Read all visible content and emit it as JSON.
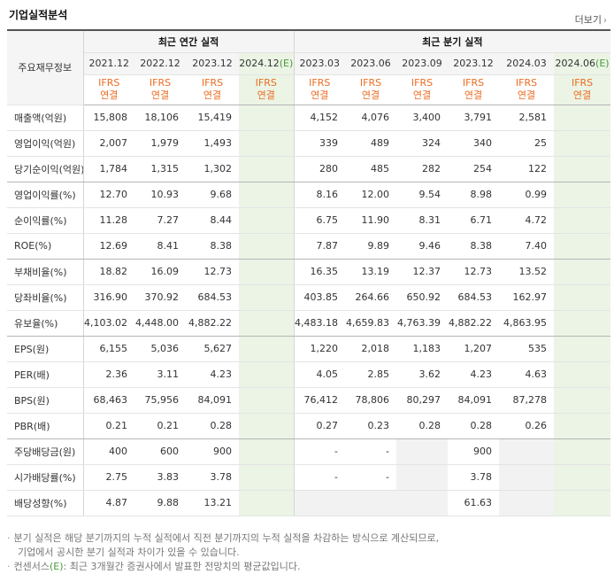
{
  "header": {
    "title": "기업실적분석",
    "more_label": "더보기",
    "more_arrow": "›"
  },
  "columns": {
    "label_header": "주요재무정보",
    "annual_group": "최근 연간 실적",
    "quarter_group": "최근 분기 실적",
    "annual_dates": [
      "2021.12",
      "2022.12",
      "2023.12"
    ],
    "annual_estimate_date": "2024.12",
    "quarter_dates": [
      "2023.03",
      "2023.06",
      "2023.09",
      "2023.12",
      "2024.03"
    ],
    "quarter_estimate_date": "2024.06",
    "estimate_mark": "(E)",
    "ifrs_line1": "IFRS",
    "ifrs_line2": "연결"
  },
  "rows": [
    {
      "label": "매출액(억원)",
      "annual": [
        "15,808",
        "18,106",
        "15,419"
      ],
      "annual_e": "",
      "quarter": [
        "4,152",
        "4,076",
        "3,400",
        "3,791",
        "2,581"
      ],
      "quarter_e": ""
    },
    {
      "label": "영업이익(억원)",
      "annual": [
        "2,007",
        "1,979",
        "1,493"
      ],
      "annual_e": "",
      "quarter": [
        "339",
        "489",
        "324",
        "340",
        "25"
      ],
      "quarter_e": ""
    },
    {
      "label": "당기순이익(억원)",
      "annual": [
        "1,784",
        "1,315",
        "1,302"
      ],
      "annual_e": "",
      "quarter": [
        "280",
        "485",
        "282",
        "254",
        "122"
      ],
      "quarter_e": ""
    },
    {
      "label": "영업이익률(%)",
      "annual": [
        "12.70",
        "10.93",
        "9.68"
      ],
      "annual_e": "",
      "quarter": [
        "8.16",
        "12.00",
        "9.54",
        "8.98",
        "0.99"
      ],
      "quarter_e": ""
    },
    {
      "label": "순이익률(%)",
      "annual": [
        "11.28",
        "7.27",
        "8.44"
      ],
      "annual_e": "",
      "quarter": [
        "6.75",
        "11.90",
        "8.31",
        "6.71",
        "4.72"
      ],
      "quarter_e": ""
    },
    {
      "label": "ROE(%)",
      "annual": [
        "12.69",
        "8.41",
        "8.38"
      ],
      "annual_e": "",
      "quarter": [
        "7.87",
        "9.89",
        "9.46",
        "8.38",
        "7.40"
      ],
      "quarter_e": ""
    },
    {
      "label": "부채비율(%)",
      "annual": [
        "18.82",
        "16.09",
        "12.73"
      ],
      "annual_e": "",
      "quarter": [
        "16.35",
        "13.19",
        "12.37",
        "12.73",
        "13.52"
      ],
      "quarter_e": ""
    },
    {
      "label": "당좌비율(%)",
      "annual": [
        "316.90",
        "370.92",
        "684.53"
      ],
      "annual_e": "",
      "quarter": [
        "403.85",
        "264.66",
        "650.92",
        "684.53",
        "162.97"
      ],
      "quarter_e": ""
    },
    {
      "label": "유보율(%)",
      "annual": [
        "4,103.02",
        "4,448.00",
        "4,882.22"
      ],
      "annual_e": "",
      "quarter": [
        "4,483.18",
        "4,659.83",
        "4,763.39",
        "4,882.22",
        "4,863.95"
      ],
      "quarter_e": ""
    },
    {
      "label": "EPS(원)",
      "annual": [
        "6,155",
        "5,036",
        "5,627"
      ],
      "annual_e": "",
      "quarter": [
        "1,220",
        "2,018",
        "1,183",
        "1,207",
        "535"
      ],
      "quarter_e": ""
    },
    {
      "label": "PER(배)",
      "annual": [
        "2.36",
        "3.11",
        "4.23"
      ],
      "annual_e": "",
      "quarter": [
        "4.05",
        "2.85",
        "3.62",
        "4.23",
        "4.63"
      ],
      "quarter_e": ""
    },
    {
      "label": "BPS(원)",
      "annual": [
        "68,463",
        "75,956",
        "84,091"
      ],
      "annual_e": "",
      "quarter": [
        "76,412",
        "78,806",
        "80,297",
        "84,091",
        "87,278"
      ],
      "quarter_e": ""
    },
    {
      "label": "PBR(배)",
      "annual": [
        "0.21",
        "0.21",
        "0.28"
      ],
      "annual_e": "",
      "quarter": [
        "0.27",
        "0.23",
        "0.28",
        "0.28",
        "0.26"
      ],
      "quarter_e": ""
    },
    {
      "label": "주당배당금(원)",
      "annual": [
        "400",
        "600",
        "900"
      ],
      "annual_e": "",
      "quarter": [
        "-",
        "-",
        "",
        "900",
        ""
      ],
      "quarter_e": ""
    },
    {
      "label": "시가배당률(%)",
      "annual": [
        "2.75",
        "3.83",
        "3.78"
      ],
      "annual_e": "",
      "quarter": [
        "-",
        "-",
        "",
        "3.78",
        ""
      ],
      "quarter_e": ""
    },
    {
      "label": "배당성향(%)",
      "annual": [
        "4.87",
        "9.88",
        "13.21"
      ],
      "annual_e": "",
      "quarter": [
        "",
        "",
        "",
        "61.63",
        ""
      ],
      "quarter_e": ""
    }
  ],
  "notes": {
    "note1_line1": "분기 실적은 해당 분기까지의 누적 실적에서 직전 분기까지의 누적 실적을 차감하는 방식으로 계산되므로,",
    "note1_line2": "기업에서 공시한 분기 실적과 차이가 있을 수 있습니다.",
    "note2_prefix": "컨센서스",
    "note2_mark": "(E)",
    "note2_text": ": 최근 3개월간 증권사에서 발표한 전망치의 평균값입니다.",
    "bullet": "·"
  }
}
